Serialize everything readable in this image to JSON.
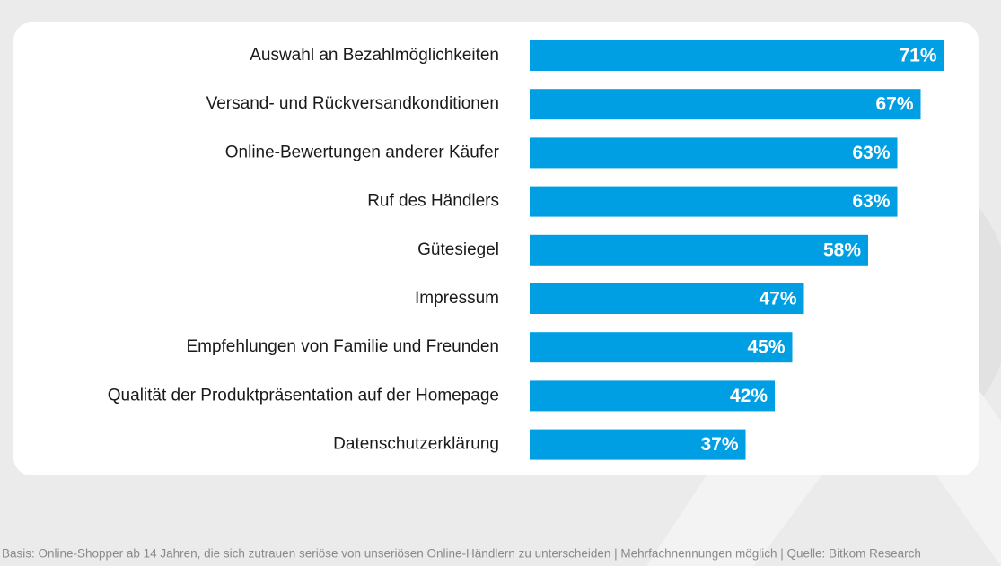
{
  "chart_data": {
    "type": "bar",
    "orientation": "horizontal",
    "categories": [
      "Auswahl an Bezahlmöglichkeiten",
      "Versand- und Rückversandkonditionen",
      "Online-Bewertungen anderer Käufer",
      "Ruf des Händlers",
      "Gütesiegel",
      "Impressum",
      "Empfehlungen von Familie und Freunden",
      "Qualität der Produktpräsentation auf der Homepage",
      "Datenschutzerklärung"
    ],
    "values": [
      71,
      67,
      63,
      63,
      58,
      47,
      45,
      42,
      37
    ],
    "value_labels": [
      "71%",
      "67%",
      "63%",
      "63%",
      "58%",
      "47%",
      "45%",
      "42%",
      "37%"
    ],
    "color": "#009fe3",
    "footnote": "Basis: Online-Shopper ab 14 Jahren, die sich zutrauen seriöse von unseriösen Online-Händlern zu unterscheiden | Mehrfachnennungen möglich | Quelle: Bitkom Research"
  }
}
